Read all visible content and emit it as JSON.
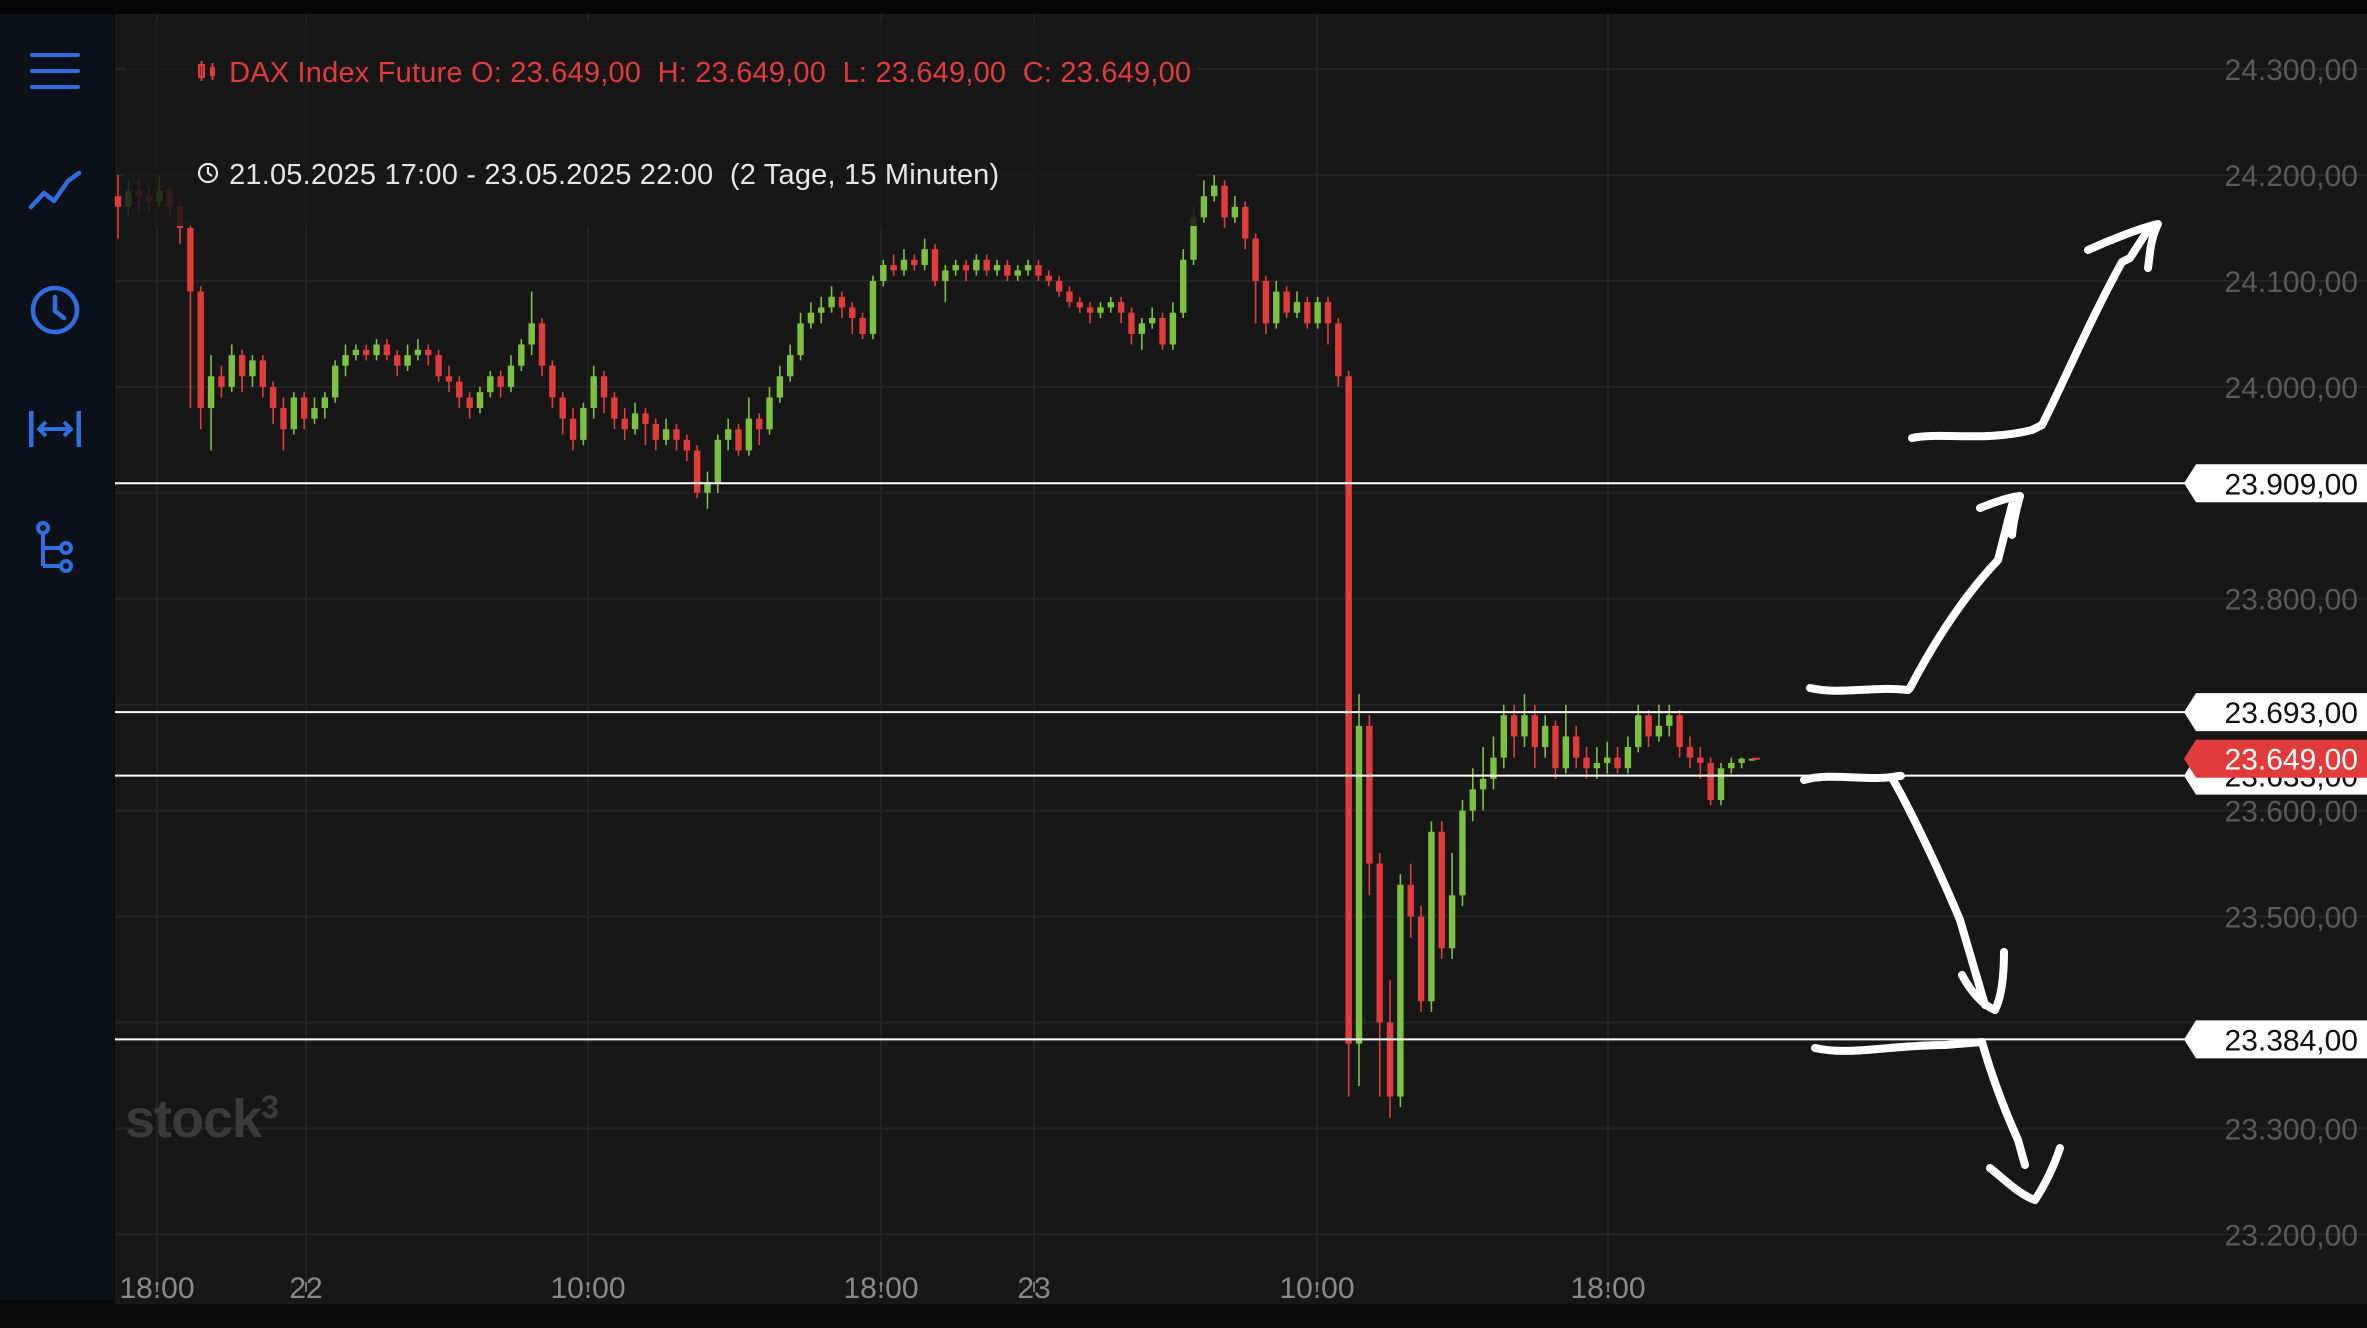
{
  "legend": {
    "instrument_line": "DAX Index Future O: 23.649,00  H: 23.649,00  L: 23.649,00  C: 23.649,00",
    "range_line": "21.05.2025 17:00 - 23.05.2025 22:00  (2 Tage, 15 Minuten)"
  },
  "sidebar": {
    "items": [
      {
        "icon": "menu-icon"
      },
      {
        "icon": "line-chart-icon"
      },
      {
        "icon": "clock-icon"
      },
      {
        "icon": "time-range-icon"
      },
      {
        "icon": "indicator-tree-icon"
      }
    ]
  },
  "watermark": "stock",
  "watermark_sup": "3",
  "colors": {
    "up": "#7cc142",
    "down": "#e23b3b",
    "background": "#171717",
    "sidebar_icons": "#2f6fe0",
    "current_price_tag": "#e23b3b"
  },
  "chart_data": {
    "type": "candlestick",
    "x_tick_labels": [
      "18:00",
      "22",
      "10:00",
      "18:00",
      "23",
      "10:00",
      "18:00"
    ],
    "y_tick_labels": [
      "24.300,00",
      "24.200,00",
      "24.100,00",
      "24.000,00",
      "23.800,00",
      "23.600,00",
      "23.500,00",
      "23.300,00",
      "23.200,00"
    ],
    "y_tick_values": [
      24300,
      24200,
      24100,
      24000,
      23800,
      23600,
      23500,
      23300,
      23200
    ],
    "ylim": [
      23138,
      24352
    ],
    "horizontal_lines": [
      {
        "value": 23909,
        "label": "23.909,00"
      },
      {
        "value": 23693,
        "label": "23.693,00"
      },
      {
        "value": 23633,
        "label": "23.633,00"
      },
      {
        "value": 23384,
        "label": "23.384,00"
      }
    ],
    "current_price": {
      "value": 23649,
      "label": "23.649,00"
    },
    "candles": [
      [
        24180,
        24170,
        24200,
        24140
      ],
      [
        24170,
        24185,
        24195,
        24160
      ],
      [
        24185,
        24180,
        24195,
        24165
      ],
      [
        24180,
        24175,
        24190,
        24165
      ],
      [
        24175,
        24185,
        24200,
        24170
      ],
      [
        24185,
        24170,
        24190,
        24160
      ],
      [
        24170,
        24150,
        24175,
        24135
      ],
      [
        24150,
        24090,
        24155,
        23980
      ],
      [
        24090,
        23980,
        24095,
        23960
      ],
      [
        23980,
        24010,
        24030,
        23940
      ],
      [
        24010,
        24000,
        24020,
        23990
      ],
      [
        24000,
        24030,
        24040,
        23995
      ],
      [
        24030,
        24010,
        24035,
        23995
      ],
      [
        24010,
        24025,
        24030,
        24000
      ],
      [
        24025,
        24000,
        24030,
        23990
      ],
      [
        24000,
        23980,
        24005,
        23965
      ],
      [
        23980,
        23960,
        23990,
        23940
      ],
      [
        23960,
        23990,
        23995,
        23955
      ],
      [
        23990,
        23970,
        23995,
        23960
      ],
      [
        23970,
        23980,
        23990,
        23965
      ],
      [
        23980,
        23990,
        23995,
        23970
      ],
      [
        23990,
        24020,
        24025,
        23985
      ],
      [
        24020,
        24030,
        24040,
        24010
      ],
      [
        24030,
        24035,
        24040,
        24025
      ],
      [
        24035,
        24030,
        24040,
        24025
      ],
      [
        24030,
        24040,
        24045,
        24025
      ],
      [
        24040,
        24030,
        24045,
        24025
      ],
      [
        24030,
        24020,
        24035,
        24010
      ],
      [
        24020,
        24030,
        24040,
        24015
      ],
      [
        24030,
        24035,
        24045,
        24025
      ],
      [
        24035,
        24030,
        24040,
        24020
      ],
      [
        24030,
        24010,
        24035,
        24005
      ],
      [
        24010,
        24005,
        24020,
        23995
      ],
      [
        24005,
        23990,
        24010,
        23980
      ],
      [
        23990,
        23980,
        23995,
        23970
      ],
      [
        23980,
        23995,
        24000,
        23975
      ],
      [
        23995,
        24010,
        24015,
        23990
      ],
      [
        24010,
        24000,
        24015,
        23990
      ],
      [
        24000,
        24020,
        24030,
        23995
      ],
      [
        24020,
        24040,
        24045,
        24015
      ],
      [
        24040,
        24060,
        24090,
        24030
      ],
      [
        24060,
        24020,
        24065,
        24010
      ],
      [
        24020,
        23990,
        24025,
        23980
      ],
      [
        23990,
        23970,
        23995,
        23955
      ],
      [
        23970,
        23950,
        23980,
        23940
      ],
      [
        23950,
        23980,
        23985,
        23945
      ],
      [
        23980,
        24010,
        24020,
        23970
      ],
      [
        24010,
        23990,
        24015,
        23975
      ],
      [
        23990,
        23970,
        23995,
        23960
      ],
      [
        23970,
        23960,
        23980,
        23950
      ],
      [
        23960,
        23975,
        23985,
        23955
      ],
      [
        23975,
        23965,
        23980,
        23945
      ],
      [
        23965,
        23950,
        23970,
        23940
      ],
      [
        23950,
        23960,
        23970,
        23945
      ],
      [
        23960,
        23950,
        23965,
        23940
      ],
      [
        23950,
        23940,
        23955,
        23930
      ],
      [
        23940,
        23900,
        23945,
        23895
      ],
      [
        23900,
        23910,
        23920,
        23885
      ],
      [
        23910,
        23950,
        23955,
        23900
      ],
      [
        23950,
        23960,
        23970,
        23940
      ],
      [
        23960,
        23940,
        23965,
        23935
      ],
      [
        23940,
        23970,
        23990,
        23935
      ],
      [
        23970,
        23960,
        23975,
        23945
      ],
      [
        23960,
        23990,
        24000,
        23955
      ],
      [
        23990,
        24010,
        24020,
        23985
      ],
      [
        24010,
        24030,
        24040,
        24005
      ],
      [
        24030,
        24060,
        24070,
        24025
      ],
      [
        24060,
        24070,
        24080,
        24055
      ],
      [
        24070,
        24075,
        24085,
        24060
      ],
      [
        24075,
        24085,
        24095,
        24070
      ],
      [
        24085,
        24075,
        24090,
        24065
      ],
      [
        24075,
        24065,
        24080,
        24050
      ],
      [
        24065,
        24050,
        24070,
        24045
      ],
      [
        24050,
        24100,
        24105,
        24045
      ],
      [
        24100,
        24115,
        24120,
        24095
      ],
      [
        24115,
        24110,
        24125,
        24105
      ],
      [
        24110,
        24120,
        24130,
        24105
      ],
      [
        24120,
        24115,
        24125,
        24110
      ],
      [
        24115,
        24130,
        24140,
        24110
      ],
      [
        24130,
        24100,
        24135,
        24095
      ],
      [
        24100,
        24110,
        24115,
        24080
      ],
      [
        24110,
        24115,
        24120,
        24105
      ],
      [
        24115,
        24110,
        24120,
        24100
      ],
      [
        24110,
        24120,
        24125,
        24105
      ],
      [
        24120,
        24110,
        24125,
        24105
      ],
      [
        24110,
        24115,
        24120,
        24105
      ],
      [
        24115,
        24105,
        24120,
        24100
      ],
      [
        24105,
        24110,
        24115,
        24100
      ],
      [
        24110,
        24115,
        24120,
        24105
      ],
      [
        24115,
        24105,
        24120,
        24100
      ],
      [
        24105,
        24100,
        24110,
        24095
      ],
      [
        24100,
        24090,
        24105,
        24085
      ],
      [
        24090,
        24080,
        24095,
        24075
      ],
      [
        24080,
        24075,
        24085,
        24070
      ],
      [
        24075,
        24070,
        24080,
        24060
      ],
      [
        24070,
        24075,
        24080,
        24065
      ],
      [
        24075,
        24080,
        24085,
        24070
      ],
      [
        24080,
        24070,
        24085,
        24060
      ],
      [
        24070,
        24050,
        24075,
        24040
      ],
      [
        24050,
        24060,
        24065,
        24035
      ],
      [
        24060,
        24065,
        24075,
        24055
      ],
      [
        24065,
        24040,
        24070,
        24035
      ],
      [
        24040,
        24070,
        24080,
        24035
      ],
      [
        24070,
        24120,
        24130,
        24065
      ],
      [
        24120,
        24160,
        24170,
        24115
      ],
      [
        24160,
        24180,
        24195,
        24155
      ],
      [
        24180,
        24190,
        24200,
        24175
      ],
      [
        24190,
        24160,
        24195,
        24150
      ],
      [
        24160,
        24170,
        24180,
        24155
      ],
      [
        24170,
        24140,
        24175,
        24130
      ],
      [
        24140,
        24100,
        24145,
        24060
      ],
      [
        24100,
        24060,
        24105,
        24050
      ],
      [
        24060,
        24090,
        24100,
        24055
      ],
      [
        24090,
        24070,
        24095,
        24065
      ],
      [
        24070,
        24080,
        24090,
        24065
      ],
      [
        24080,
        24060,
        24085,
        24055
      ],
      [
        24060,
        24080,
        24085,
        24055
      ],
      [
        24080,
        24060,
        24085,
        24040
      ],
      [
        24060,
        24010,
        24065,
        24000
      ],
      [
        24010,
        23380,
        24015,
        23330
      ],
      [
        23380,
        23680,
        23710,
        23340
      ],
      [
        23680,
        23550,
        23690,
        23520
      ],
      [
        23550,
        23400,
        23560,
        23330
      ],
      [
        23400,
        23330,
        23440,
        23310
      ],
      [
        23330,
        23530,
        23540,
        23320
      ],
      [
        23530,
        23500,
        23550,
        23480
      ],
      [
        23500,
        23420,
        23510,
        23410
      ],
      [
        23420,
        23580,
        23590,
        23410
      ],
      [
        23580,
        23470,
        23590,
        23460
      ],
      [
        23470,
        23520,
        23560,
        23460
      ],
      [
        23520,
        23600,
        23610,
        23510
      ],
      [
        23600,
        23620,
        23640,
        23590
      ],
      [
        23620,
        23630,
        23660,
        23600
      ],
      [
        23630,
        23650,
        23670,
        23620
      ],
      [
        23650,
        23690,
        23700,
        23640
      ],
      [
        23690,
        23670,
        23700,
        23650
      ],
      [
        23670,
        23690,
        23710,
        23660
      ],
      [
        23690,
        23660,
        23700,
        23640
      ],
      [
        23660,
        23680,
        23690,
        23650
      ],
      [
        23680,
        23640,
        23685,
        23630
      ],
      [
        23640,
        23670,
        23700,
        23635
      ],
      [
        23670,
        23650,
        23680,
        23640
      ],
      [
        23650,
        23640,
        23660,
        23630
      ],
      [
        23640,
        23645,
        23660,
        23630
      ],
      [
        23645,
        23650,
        23665,
        23635
      ],
      [
        23650,
        23640,
        23660,
        23635
      ],
      [
        23640,
        23660,
        23670,
        23635
      ],
      [
        23660,
        23690,
        23700,
        23655
      ],
      [
        23690,
        23670,
        23695,
        23660
      ],
      [
        23670,
        23680,
        23700,
        23665
      ],
      [
        23680,
        23690,
        23700,
        23670
      ],
      [
        23690,
        23660,
        23695,
        23650
      ],
      [
        23660,
        23650,
        23670,
        23640
      ],
      [
        23650,
        23645,
        23660,
        23630
      ],
      [
        23645,
        23610,
        23650,
        23605
      ],
      [
        23610,
        23640,
        23645,
        23605
      ],
      [
        23640,
        23645,
        23650,
        23635
      ],
      [
        23645,
        23649,
        23650,
        23640
      ],
      [
        23649,
        23649,
        23649,
        23649
      ]
    ]
  }
}
